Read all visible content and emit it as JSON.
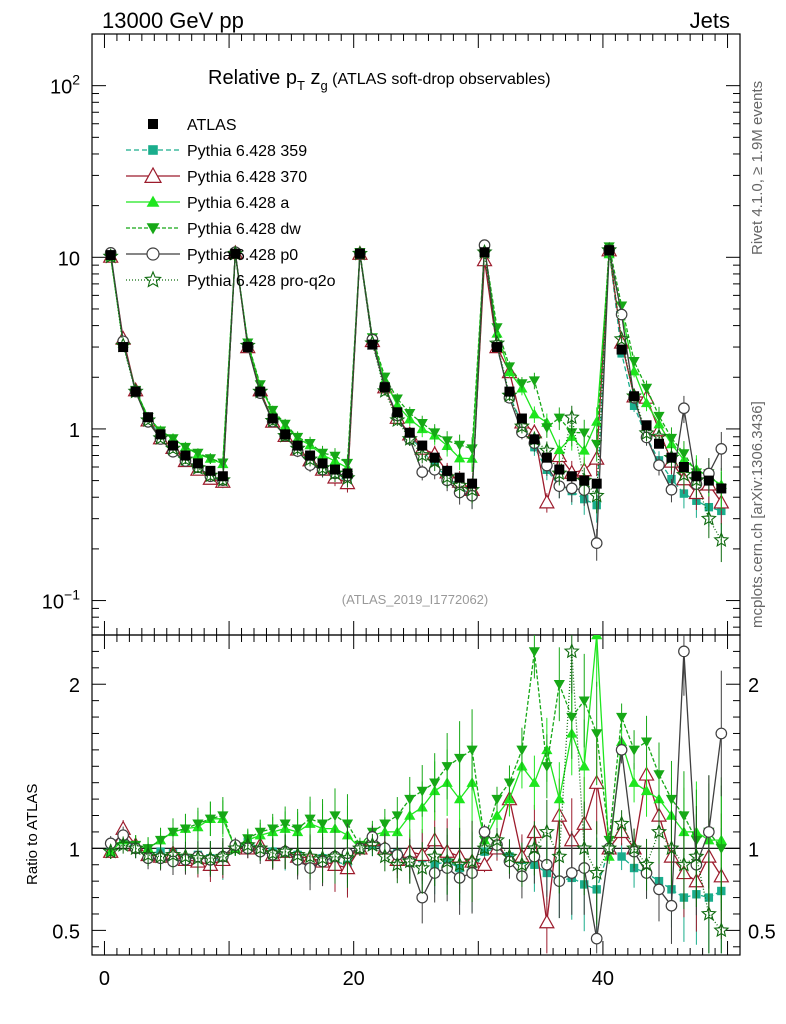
{
  "header": {
    "left": "13000 GeV pp",
    "right": "Jets"
  },
  "side": {
    "top": "Rivet 4.1.0, ≥ 1.9M events",
    "bottom": "mcplots.cern.ch [arXiv:1306.3436]"
  },
  "chart_data": {
    "type": "scatter",
    "title": "Relative p_T z_g (ATLAS soft-drop observables)",
    "title_parts": {
      "main": "Relative p",
      "sub1": "T",
      "mid": " z",
      "sub2": "g",
      "rest": " (ATLAS soft-drop observables)"
    },
    "analysis_label": "(ATLAS_2019_I1772062)",
    "xlabel": "",
    "ylabel_top": "",
    "ylabel_bottom": "Ratio to ATLAS",
    "x_range": [
      -1,
      51
    ],
    "y_range_top": [
      0.063,
      200
    ],
    "y_scale_top": "log",
    "y_range_bottom": [
      0.35,
      2.3
    ],
    "x_ticks": [
      {
        "v": 0,
        "label": "0"
      },
      {
        "v": 20,
        "label": "20"
      },
      {
        "v": 40,
        "label": "40"
      }
    ],
    "y_ticks_top": [
      {
        "v": 0.1,
        "base": "10",
        "exp": "−1"
      },
      {
        "v": 1,
        "base": "1",
        "exp": ""
      },
      {
        "v": 10,
        "base": "10",
        "exp": ""
      },
      {
        "v": 100,
        "base": "10",
        "exp": "2"
      }
    ],
    "y_ticks_bottom": [
      {
        "v": 0.5,
        "label": "0.5"
      },
      {
        "v": 1,
        "label": "1"
      },
      {
        "v": 2,
        "label": "2"
      }
    ],
    "x": [
      0.5,
      1.5,
      2.5,
      3.5,
      4.5,
      5.5,
      6.5,
      7.5,
      8.5,
      9.5,
      10.5,
      11.5,
      12.5,
      13.5,
      14.5,
      15.5,
      16.5,
      17.5,
      18.5,
      19.5,
      20.5,
      21.5,
      22.5,
      23.5,
      24.5,
      25.5,
      26.5,
      27.5,
      28.5,
      29.5,
      30.5,
      31.5,
      32.5,
      33.5,
      34.5,
      35.5,
      36.5,
      37.5,
      38.5,
      39.5,
      40.5,
      41.5,
      42.5,
      43.5,
      44.5,
      45.5,
      46.5,
      47.5,
      48.5,
      49.5
    ],
    "data": {
      "name": "ATLAS",
      "values": [
        10.3,
        3.0,
        1.65,
        1.17,
        0.93,
        0.8,
        0.7,
        0.63,
        0.57,
        0.53,
        10.5,
        3.0,
        1.65,
        1.15,
        0.93,
        0.8,
        0.7,
        0.63,
        0.58,
        0.55,
        10.5,
        3.1,
        1.75,
        1.25,
        0.95,
        0.8,
        0.68,
        0.57,
        0.52,
        0.48,
        10.7,
        3.0,
        1.65,
        1.15,
        0.87,
        0.68,
        0.58,
        0.53,
        0.5,
        0.48,
        11.0,
        2.9,
        1.55,
        1.05,
        0.82,
        0.68,
        0.6,
        0.53,
        0.5,
        0.45
      ]
    },
    "series": [
      {
        "name": "Pythia 6.428 359",
        "color": "#1aad8c",
        "marker": "square-small",
        "dash": "5,3",
        "ratio": [
          0.99,
          1.05,
          1.0,
          0.97,
          0.98,
          0.97,
          0.94,
          0.96,
          0.94,
          0.92,
          1.0,
          1.04,
          1.0,
          0.98,
          0.97,
          0.96,
          0.92,
          0.94,
          0.92,
          0.9,
          1.0,
          1.02,
          1.0,
          0.97,
          0.95,
          0.94,
          0.9,
          0.92,
          0.88,
          0.86,
          0.98,
          1.0,
          0.95,
          0.93,
          0.9,
          0.85,
          0.8,
          0.82,
          0.78,
          0.75,
          1.0,
          0.95,
          0.88,
          0.85,
          0.8,
          0.75,
          0.7,
          0.72,
          0.7,
          0.74
        ]
      },
      {
        "name": "Pythia 6.428 370",
        "color": "#9c1b2c",
        "marker": "triangle-open",
        "dash": "",
        "ratio": [
          0.98,
          1.12,
          1.02,
          0.96,
          0.95,
          0.97,
          0.93,
          0.92,
          0.9,
          0.93,
          1.01,
          1.0,
          1.02,
          0.96,
          0.98,
          0.95,
          0.94,
          0.92,
          0.9,
          0.88,
          1.0,
          1.05,
          1.0,
          0.93,
          0.98,
          0.96,
          1.05,
          0.98,
          0.95,
          0.92,
          0.9,
          1.0,
          1.3,
          0.95,
          1.1,
          0.55,
          1.2,
          1.05,
          1.15,
          1.4,
          1.0,
          1.1,
          1.0,
          1.45,
          1.2,
          0.95,
          0.85,
          0.8,
          0.95,
          0.83
        ]
      },
      {
        "name": "Pythia 6.428 a",
        "color": "#1ee61e",
        "marker": "triangle-filled",
        "dash": "",
        "ratio": [
          0.98,
          1.05,
          1.02,
          1.0,
          1.05,
          1.1,
          1.12,
          1.13,
          1.18,
          1.18,
          1.0,
          1.05,
          1.08,
          1.1,
          1.12,
          1.1,
          1.15,
          1.12,
          1.12,
          1.08,
          1.0,
          1.08,
          1.1,
          1.1,
          1.2,
          1.25,
          1.35,
          1.4,
          1.3,
          1.4,
          1.05,
          1.2,
          1.3,
          1.5,
          1.4,
          1.6,
          1.3,
          1.7,
          1.5,
          2.3,
          0.95,
          1.65,
          1.4,
          1.35,
          1.3,
          1.2,
          1.1,
          1.1,
          1.05,
          1.05
        ]
      },
      {
        "name": "Pythia 6.428 dw",
        "color": "#16a816",
        "marker": "triangle-down",
        "dash": "4,2",
        "ratio": [
          1.0,
          1.05,
          1.02,
          1.0,
          1.05,
          1.1,
          1.12,
          1.15,
          1.18,
          1.2,
          1.0,
          1.06,
          1.1,
          1.12,
          1.15,
          1.12,
          1.18,
          1.15,
          1.2,
          1.15,
          1.02,
          1.1,
          1.15,
          1.2,
          1.3,
          1.35,
          1.4,
          1.5,
          1.55,
          1.6,
          1.05,
          1.3,
          1.4,
          1.6,
          2.2,
          1.5,
          2.0,
          1.8,
          1.9,
          1.7,
          1.05,
          1.8,
          1.6,
          1.65,
          1.45,
          1.3,
          1.2,
          1.05,
          1.1,
          1.0
        ]
      },
      {
        "name": "Pythia 6.428 p0",
        "color": "#3f3f3f",
        "marker": "circle-open",
        "dash": "",
        "ratio": [
          1.03,
          1.08,
          1.0,
          0.94,
          0.94,
          0.92,
          0.93,
          0.95,
          0.93,
          0.95,
          1.02,
          1.0,
          0.98,
          0.96,
          0.98,
          0.93,
          0.88,
          0.92,
          0.95,
          0.97,
          1.0,
          1.07,
          1.0,
          0.96,
          0.92,
          0.7,
          0.85,
          0.88,
          0.82,
          0.85,
          1.1,
          1.02,
          0.92,
          0.83,
          0.95,
          0.9,
          0.8,
          0.85,
          0.88,
          0.45,
          1.0,
          1.6,
          0.98,
          0.85,
          0.75,
          0.65,
          2.2,
          0.9,
          1.1,
          1.7
        ]
      },
      {
        "name": "Pythia 6.428 pro-q2o",
        "color": "#0f6b0f",
        "marker": "star-open",
        "dash": "1,2",
        "ratio": [
          0.98,
          1.02,
          1.0,
          0.96,
          0.95,
          0.96,
          0.95,
          0.94,
          0.94,
          0.95,
          1.0,
          1.02,
          1.0,
          0.97,
          0.98,
          0.96,
          0.95,
          0.94,
          0.95,
          0.94,
          1.0,
          1.02,
          0.95,
          0.9,
          0.92,
          0.88,
          0.95,
          0.92,
          0.9,
          0.92,
          1.0,
          1.05,
          0.95,
          0.9,
          1.0,
          1.1,
          0.95,
          2.2,
          1.0,
          0.85,
          1.0,
          1.15,
          1.0,
          0.9,
          1.1,
          1.0,
          0.9,
          0.95,
          0.6,
          0.5
        ]
      }
    ]
  }
}
